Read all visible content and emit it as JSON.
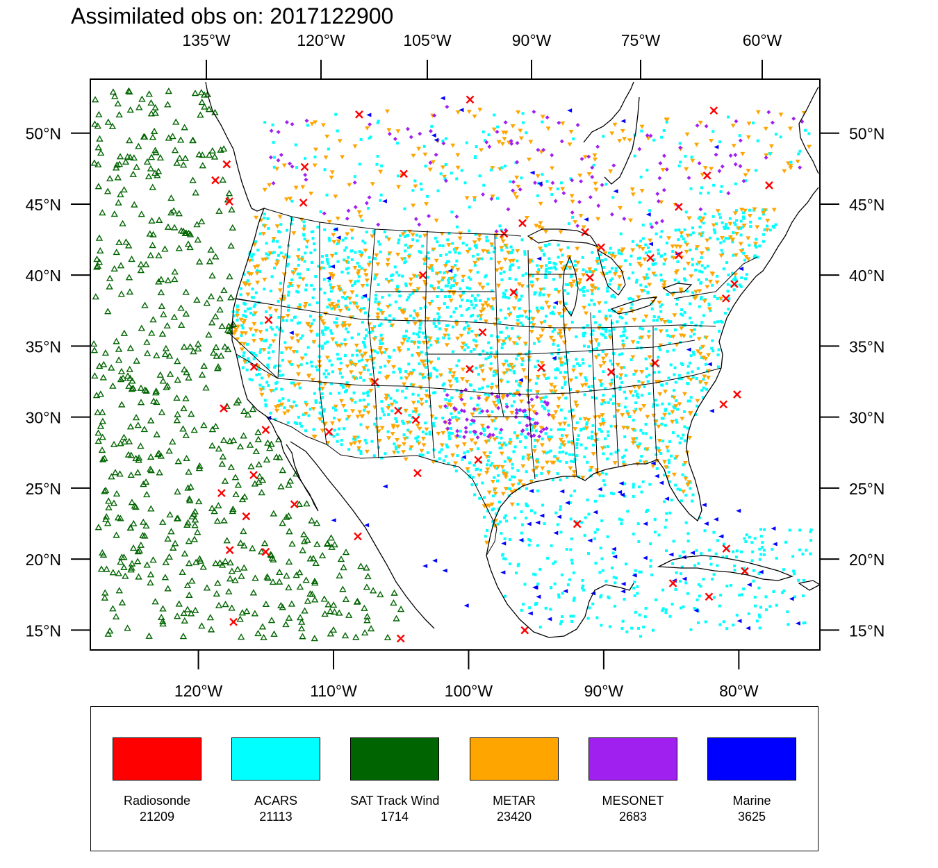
{
  "title": "Assimilated obs on: 2017122900",
  "map": {
    "top_ticks": [
      "135°W",
      "120°W",
      "105°W",
      "90°W",
      "75°W",
      "60°W"
    ],
    "bottom_ticks": [
      "120°W",
      "110°W",
      "100°W",
      "90°W",
      "80°W"
    ],
    "lat_ticks": [
      "50°N",
      "45°N",
      "40°N",
      "35°N",
      "30°N",
      "25°N",
      "20°N",
      "15°N"
    ],
    "lat_values": [
      50,
      45,
      40,
      35,
      30,
      25,
      20,
      15
    ],
    "bottom_lon_values": [
      -120,
      -110,
      -100,
      -90,
      -80
    ],
    "lon_range": [
      -128,
      -74
    ],
    "lat_range": [
      13.6,
      53.8
    ]
  },
  "legend": [
    {
      "name": "Radiosonde",
      "count": "21209",
      "color": "#ff0000",
      "marker": "x-mark-icon"
    },
    {
      "name": "ACARS",
      "count": "21113",
      "color": "#00ffff",
      "marker": "square-dot-icon"
    },
    {
      "name": "SAT Track Wind",
      "count": "1714",
      "color": "#006400",
      "marker": "triangle-up-icon"
    },
    {
      "name": "METAR",
      "count": "23420",
      "color": "#ffa500",
      "marker": "triangle-down-icon"
    },
    {
      "name": "MESONET",
      "count": "2683",
      "color": "#a020f0",
      "marker": "diamond-icon"
    },
    {
      "name": "Marine",
      "count": "3625",
      "color": "#0000ff",
      "marker": "triangle-left-icon"
    }
  ]
}
